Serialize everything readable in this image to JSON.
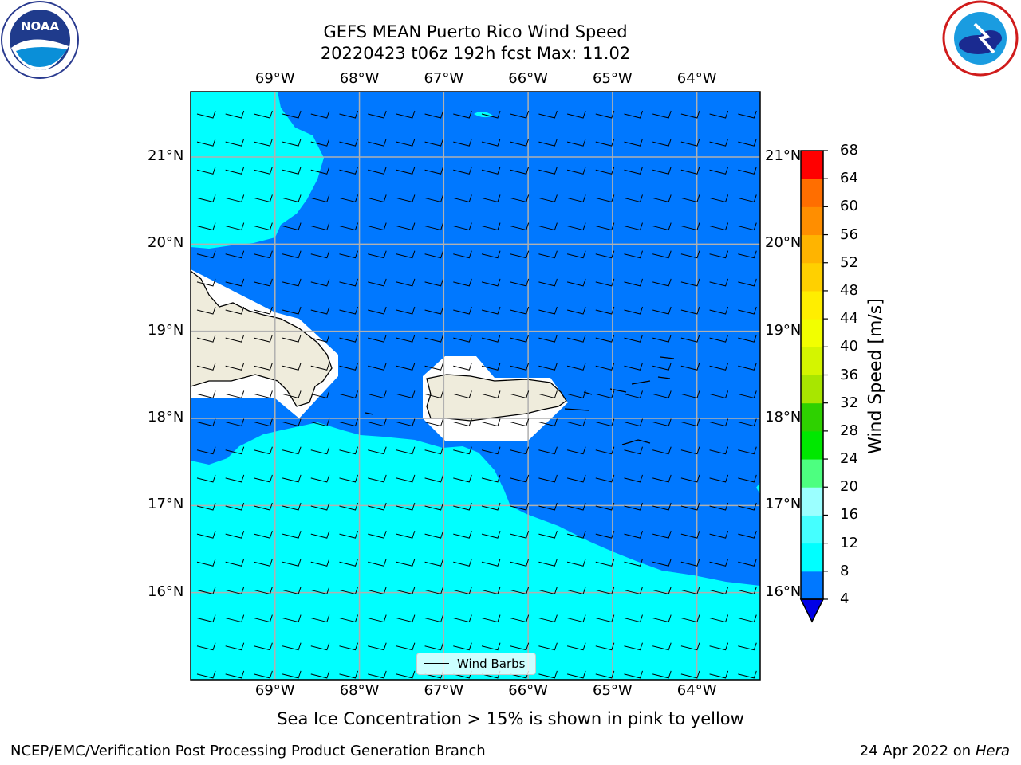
{
  "title": {
    "line1": "GEFS MEAN Puerto Rico Wind Speed",
    "line2": "20220423 t06z 192h fcst   Max: 11.02"
  },
  "map": {
    "lon_labels": [
      "69°W",
      "68°W",
      "67°W",
      "66°W",
      "65°W",
      "64°W"
    ],
    "lat_labels": [
      "21°N",
      "20°N",
      "19°N",
      "18°N",
      "17°N",
      "16°N"
    ],
    "lon_range": [
      -70,
      -63.25
    ],
    "lat_range": [
      15.0,
      21.75
    ],
    "colors": {
      "ocean_low": "#0078ff",
      "ocean_mid": "#00ffff",
      "land": "#efecdc"
    }
  },
  "legend": {
    "label": "Wind Barbs"
  },
  "colorbar": {
    "title": "Wind Speed [m/s]",
    "ticks": [
      "68",
      "64",
      "60",
      "56",
      "52",
      "48",
      "44",
      "40",
      "36",
      "32",
      "28",
      "24",
      "20",
      "16",
      "12",
      "8",
      "4"
    ],
    "colors": [
      "#0078ff",
      "#00ffff",
      "#45ffff",
      "#9bffff",
      "#4dff80",
      "#00e800",
      "#2ed100",
      "#a8e600",
      "#d4f500",
      "#f2ff00",
      "#ffee00",
      "#ffd000",
      "#ffb400",
      "#ff8e00",
      "#ff6e00",
      "#ff3c00",
      "#ff0000"
    ]
  },
  "caption": "Sea Ice Concentration > 15% is shown in pink to yellow",
  "footer": {
    "left": "NCEP/EMC/Verification Post Processing Product Generation Branch",
    "right_prefix": "24 Apr 2022 on ",
    "right_italic": "Hera"
  }
}
